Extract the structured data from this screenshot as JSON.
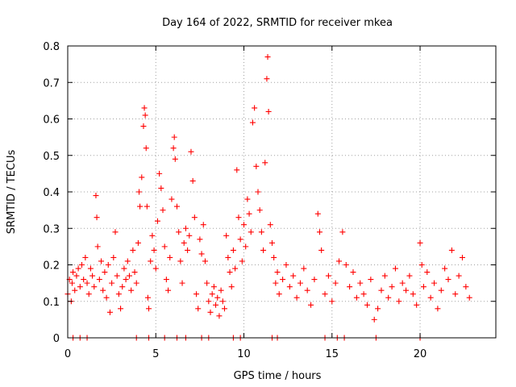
{
  "chart_data": {
    "type": "scatter",
    "title": "Day 164 of 2022, SRMTID for receiver mkea",
    "xlabel": "GPS time / hours",
    "ylabel": "SRMTID / TECUs",
    "xlim": [
      0,
      24.3
    ],
    "ylim": [
      0,
      0.8
    ],
    "xticks": [
      0,
      5,
      10,
      15,
      20
    ],
    "xtick_labels": [
      "0",
      "5",
      "10",
      "15",
      "20"
    ],
    "yticks": [
      0,
      0.1,
      0.2,
      0.3,
      0.4,
      0.5,
      0.6,
      0.7,
      0.8
    ],
    "ytick_labels": [
      "0",
      "0.1",
      "0.2",
      "0.3",
      "0.4",
      "0.5",
      "0.6",
      "0.7",
      "0.8"
    ],
    "grid": true,
    "marker": "plus",
    "color": "#ff0000",
    "series": [
      {
        "name": "SRMTID",
        "points": [
          [
            0.0,
            0.12
          ],
          [
            0.1,
            0.16
          ],
          [
            0.2,
            0.1
          ],
          [
            0.25,
            0.15
          ],
          [
            0.3,
            0.18
          ],
          [
            0.4,
            0.13
          ],
          [
            0.5,
            0.17
          ],
          [
            0.6,
            0.19
          ],
          [
            0.7,
            0.14
          ],
          [
            0.8,
            0.2
          ],
          [
            0.9,
            0.16
          ],
          [
            1.0,
            0.22
          ],
          [
            1.1,
            0.15
          ],
          [
            1.2,
            0.12
          ],
          [
            1.3,
            0.19
          ],
          [
            1.4,
            0.17
          ],
          [
            1.5,
            0.14
          ],
          [
            1.6,
            0.39
          ],
          [
            1.65,
            0.33
          ],
          [
            1.7,
            0.25
          ],
          [
            1.8,
            0.16
          ],
          [
            1.9,
            0.21
          ],
          [
            2.0,
            0.13
          ],
          [
            2.1,
            0.18
          ],
          [
            2.2,
            0.11
          ],
          [
            2.3,
            0.2
          ],
          [
            2.4,
            0.07
          ],
          [
            2.5,
            0.15
          ],
          [
            2.6,
            0.22
          ],
          [
            2.7,
            0.29
          ],
          [
            2.8,
            0.17
          ],
          [
            2.9,
            0.12
          ],
          [
            3.0,
            0.08
          ],
          [
            3.1,
            0.14
          ],
          [
            3.2,
            0.19
          ],
          [
            3.3,
            0.16
          ],
          [
            3.4,
            0.21
          ],
          [
            3.5,
            0.17
          ],
          [
            3.6,
            0.13
          ],
          [
            3.7,
            0.24
          ],
          [
            3.8,
            0.18
          ],
          [
            3.9,
            0.15
          ],
          [
            4.0,
            0.26
          ],
          [
            4.05,
            0.4
          ],
          [
            4.1,
            0.36
          ],
          [
            4.2,
            0.44
          ],
          [
            4.3,
            0.58
          ],
          [
            4.35,
            0.63
          ],
          [
            4.4,
            0.61
          ],
          [
            4.45,
            0.52
          ],
          [
            4.5,
            0.36
          ],
          [
            4.55,
            0.11
          ],
          [
            4.6,
            0.08
          ],
          [
            4.7,
            0.21
          ],
          [
            4.8,
            0.28
          ],
          [
            4.9,
            0.24
          ],
          [
            5.0,
            0.19
          ],
          [
            5.1,
            0.32
          ],
          [
            5.2,
            0.45
          ],
          [
            5.3,
            0.41
          ],
          [
            5.4,
            0.35
          ],
          [
            5.5,
            0.25
          ],
          [
            5.6,
            0.16
          ],
          [
            5.7,
            0.13
          ],
          [
            5.8,
            0.22
          ],
          [
            5.9,
            0.38
          ],
          [
            6.0,
            0.52
          ],
          [
            6.05,
            0.55
          ],
          [
            6.1,
            0.49
          ],
          [
            6.2,
            0.36
          ],
          [
            6.3,
            0.29
          ],
          [
            6.4,
            0.21
          ],
          [
            6.5,
            0.15
          ],
          [
            6.6,
            0.26
          ],
          [
            6.7,
            0.3
          ],
          [
            6.8,
            0.24
          ],
          [
            6.9,
            0.28
          ],
          [
            7.0,
            0.51
          ],
          [
            7.1,
            0.43
          ],
          [
            7.2,
            0.33
          ],
          [
            7.3,
            0.12
          ],
          [
            7.4,
            0.08
          ],
          [
            7.5,
            0.27
          ],
          [
            7.6,
            0.23
          ],
          [
            7.7,
            0.31
          ],
          [
            7.8,
            0.21
          ],
          [
            7.9,
            0.15
          ],
          [
            8.0,
            0.1
          ],
          [
            8.1,
            0.07
          ],
          [
            8.2,
            0.12
          ],
          [
            8.3,
            0.14
          ],
          [
            8.4,
            0.09
          ],
          [
            8.5,
            0.11
          ],
          [
            8.6,
            0.06
          ],
          [
            8.7,
            0.13
          ],
          [
            8.8,
            0.1
          ],
          [
            8.9,
            0.08
          ],
          [
            9.0,
            0.28
          ],
          [
            9.1,
            0.22
          ],
          [
            9.2,
            0.18
          ],
          [
            9.3,
            0.14
          ],
          [
            9.4,
            0.24
          ],
          [
            9.5,
            0.19
          ],
          [
            9.6,
            0.46
          ],
          [
            9.7,
            0.33
          ],
          [
            9.8,
            0.27
          ],
          [
            9.9,
            0.21
          ],
          [
            10.0,
            0.31
          ],
          [
            10.1,
            0.25
          ],
          [
            10.2,
            0.38
          ],
          [
            10.3,
            0.34
          ],
          [
            10.4,
            0.29
          ],
          [
            10.5,
            0.59
          ],
          [
            10.6,
            0.63
          ],
          [
            10.7,
            0.47
          ],
          [
            10.8,
            0.4
          ],
          [
            10.9,
            0.35
          ],
          [
            11.0,
            0.29
          ],
          [
            11.1,
            0.24
          ],
          [
            11.2,
            0.48
          ],
          [
            11.3,
            0.71
          ],
          [
            11.35,
            0.77
          ],
          [
            11.4,
            0.62
          ],
          [
            11.5,
            0.31
          ],
          [
            11.6,
            0.26
          ],
          [
            11.7,
            0.22
          ],
          [
            11.8,
            0.15
          ],
          [
            11.9,
            0.18
          ],
          [
            12.0,
            0.12
          ],
          [
            12.2,
            0.16
          ],
          [
            12.4,
            0.2
          ],
          [
            12.6,
            0.14
          ],
          [
            12.8,
            0.17
          ],
          [
            13.0,
            0.11
          ],
          [
            13.2,
            0.15
          ],
          [
            13.4,
            0.19
          ],
          [
            13.6,
            0.13
          ],
          [
            13.8,
            0.09
          ],
          [
            14.0,
            0.16
          ],
          [
            14.2,
            0.34
          ],
          [
            14.3,
            0.29
          ],
          [
            14.4,
            0.24
          ],
          [
            14.6,
            0.12
          ],
          [
            14.8,
            0.17
          ],
          [
            15.0,
            0.1
          ],
          [
            15.2,
            0.15
          ],
          [
            15.4,
            0.21
          ],
          [
            15.6,
            0.29
          ],
          [
            15.8,
            0.2
          ],
          [
            16.0,
            0.14
          ],
          [
            16.2,
            0.18
          ],
          [
            16.4,
            0.11
          ],
          [
            16.6,
            0.15
          ],
          [
            16.8,
            0.12
          ],
          [
            17.0,
            0.09
          ],
          [
            17.2,
            0.16
          ],
          [
            17.4,
            0.05
          ],
          [
            17.6,
            0.08
          ],
          [
            17.8,
            0.13
          ],
          [
            18.0,
            0.17
          ],
          [
            18.2,
            0.11
          ],
          [
            18.4,
            0.14
          ],
          [
            18.6,
            0.19
          ],
          [
            18.8,
            0.1
          ],
          [
            19.0,
            0.15
          ],
          [
            19.2,
            0.13
          ],
          [
            19.4,
            0.17
          ],
          [
            19.6,
            0.12
          ],
          [
            19.8,
            0.09
          ],
          [
            20.0,
            0.26
          ],
          [
            20.1,
            0.2
          ],
          [
            20.2,
            0.14
          ],
          [
            20.4,
            0.18
          ],
          [
            20.6,
            0.11
          ],
          [
            20.8,
            0.15
          ],
          [
            21.0,
            0.08
          ],
          [
            21.2,
            0.13
          ],
          [
            21.4,
            0.19
          ],
          [
            21.6,
            0.16
          ],
          [
            21.8,
            0.24
          ],
          [
            22.0,
            0.12
          ],
          [
            22.2,
            0.17
          ],
          [
            22.4,
            0.22
          ],
          [
            22.6,
            0.14
          ],
          [
            22.8,
            0.11
          ],
          [
            0.3,
            0.0
          ],
          [
            0.7,
            0.0
          ],
          [
            1.1,
            0.0
          ],
          [
            3.9,
            0.0
          ],
          [
            4.6,
            0.0
          ],
          [
            5.5,
            0.0
          ],
          [
            6.2,
            0.0
          ],
          [
            6.7,
            0.0
          ],
          [
            7.6,
            0.0
          ],
          [
            8.0,
            0.0
          ],
          [
            9.4,
            0.0
          ],
          [
            9.8,
            0.0
          ],
          [
            11.6,
            0.0
          ],
          [
            11.9,
            0.0
          ],
          [
            14.6,
            0.0
          ],
          [
            15.3,
            0.0
          ],
          [
            15.7,
            0.0
          ],
          [
            17.5,
            0.0
          ],
          [
            20.0,
            0.0
          ]
        ]
      }
    ]
  }
}
